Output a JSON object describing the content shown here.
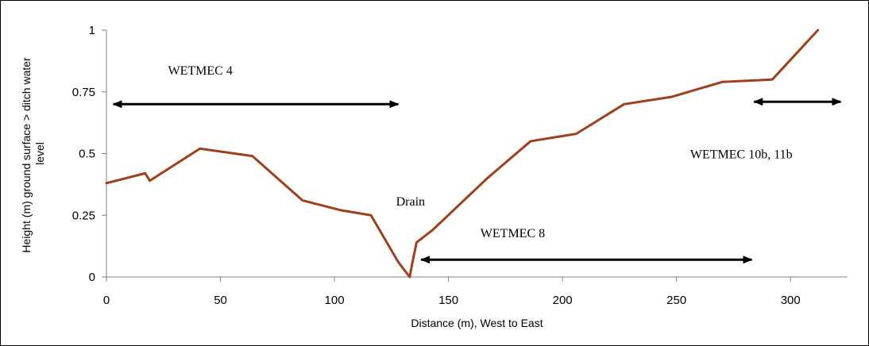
{
  "chart_data": {
    "type": "line",
    "title": "",
    "xlabel": "Distance (m), West to East",
    "ylabel": "Height (m) ground surface > ditch water level",
    "ylabel_lines": [
      "Height (m) ground surface > ditch water",
      "level"
    ],
    "xlim": [
      0,
      325
    ],
    "ylim": [
      0,
      1
    ],
    "xticks": [
      0,
      50,
      100,
      150,
      200,
      250,
      300
    ],
    "yticks": [
      0,
      0.25,
      0.5,
      0.75,
      1
    ],
    "ytick_labels": [
      "0",
      "0.25",
      "0.5",
      "0.75",
      "1"
    ],
    "grid": false,
    "legend": "none",
    "series_color": "#A0401A",
    "series": [
      {
        "x": [
          0,
          17,
          19,
          41,
          64,
          86,
          103,
          116,
          128,
          133,
          134,
          136,
          143,
          167,
          186,
          206,
          227,
          248,
          270,
          292,
          312
        ],
        "y": [
          0.38,
          0.42,
          0.39,
          0.52,
          0.49,
          0.31,
          0.27,
          0.25,
          0.06,
          0.0,
          0.05,
          0.14,
          0.19,
          0.4,
          0.55,
          0.58,
          0.7,
          0.73,
          0.79,
          0.8,
          1.0
        ]
      }
    ],
    "annotations": [
      {
        "text": "WETMEC 4",
        "x": 27,
        "y": 0.82
      },
      {
        "text": "Drain",
        "x": 127,
        "y": 0.29
      },
      {
        "text": "WETMEC 8",
        "x": 164,
        "y": 0.16
      },
      {
        "text": "WETMEC 10b, 11b",
        "x": 256,
        "y": 0.48
      }
    ],
    "arrows": [
      {
        "x1": 3,
        "x2": 128,
        "y": 0.7
      },
      {
        "x1": 138,
        "x2": 283,
        "y": 0.07
      },
      {
        "x1": 284,
        "x2": 322,
        "y": 0.71
      }
    ]
  }
}
